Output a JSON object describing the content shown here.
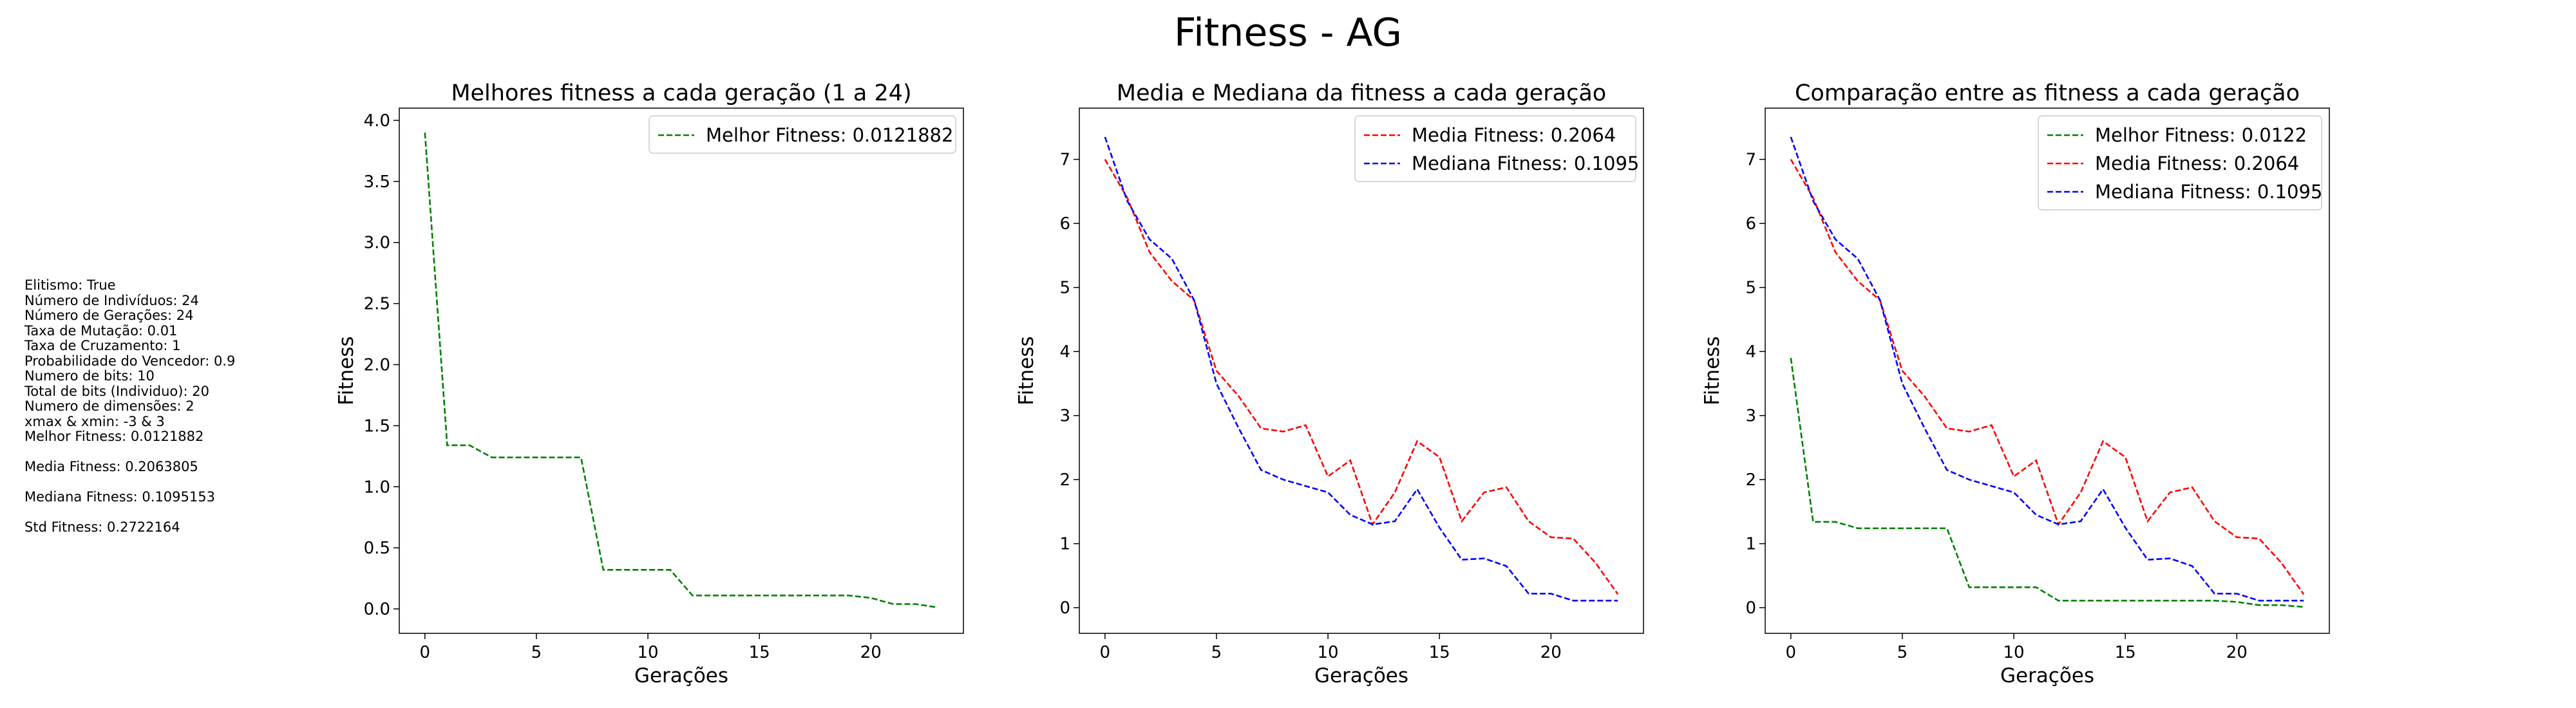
{
  "figure": {
    "title": "Fitness - AG",
    "params": [
      "Elitismo: True",
      "Número de Indivíduos: 24",
      "Número de Gerações: 24",
      "Taxa de Mutação: 0.01",
      "Taxa de Cruzamento: 1",
      "Probabilidade do Vencedor: 0.9",
      "Numero de bits: 10",
      "Total de bits (Individuo): 20",
      "Numero de dimensões: 2",
      "xmax & xmin: -3 & 3",
      "Melhor Fitness: 0.0121882",
      "",
      "Media Fitness: 0.2063805",
      "",
      "Mediana Fitness: 0.1095153",
      "",
      "Std Fitness: 0.2722164"
    ]
  },
  "chart_data": [
    {
      "type": "line",
      "title": "Melhores fitness a cada geração (1 a 24)",
      "xlabel": "Gerações",
      "ylabel": "Fitness",
      "xlim": [
        -1.15,
        24.15
      ],
      "ylim": [
        -0.2,
        4.1
      ],
      "xticks": [
        0,
        5,
        10,
        15,
        20
      ],
      "yticks": [
        "0.0",
        "0.5",
        "1.0",
        "1.5",
        "2.0",
        "2.5",
        "3.0",
        "3.5",
        "4.0"
      ],
      "legend_position": "top-right",
      "x": [
        0,
        1,
        2,
        3,
        4,
        5,
        6,
        7,
        8,
        9,
        10,
        11,
        12,
        13,
        14,
        15,
        16,
        17,
        18,
        19,
        20,
        21,
        22,
        23
      ],
      "series": [
        {
          "name": "Melhor Fitness: 0.0121882",
          "color": "#008000",
          "values": [
            3.9,
            1.34,
            1.34,
            1.24,
            1.24,
            1.24,
            1.24,
            1.24,
            0.32,
            0.32,
            0.32,
            0.32,
            0.11,
            0.11,
            0.11,
            0.11,
            0.11,
            0.11,
            0.11,
            0.11,
            0.09,
            0.04,
            0.04,
            0.012
          ]
        }
      ]
    },
    {
      "type": "line",
      "title": "Media e Mediana da fitness a cada geração",
      "xlabel": "Gerações",
      "ylabel": "Fitness",
      "xlim": [
        -1.15,
        24.15
      ],
      "ylim": [
        -0.4,
        7.8
      ],
      "xticks": [
        0,
        5,
        10,
        15,
        20
      ],
      "yticks": [
        "0",
        "1",
        "2",
        "3",
        "4",
        "5",
        "6",
        "7"
      ],
      "legend_position": "top-right",
      "x": [
        0,
        1,
        2,
        3,
        4,
        5,
        6,
        7,
        8,
        9,
        10,
        11,
        12,
        13,
        14,
        15,
        16,
        17,
        18,
        19,
        20,
        21,
        22,
        23
      ],
      "series": [
        {
          "name": "Media Fitness: 0.2064",
          "color": "#ff0000",
          "values": [
            7.0,
            6.4,
            5.55,
            5.1,
            4.8,
            3.7,
            3.3,
            2.8,
            2.75,
            2.85,
            2.05,
            2.3,
            1.3,
            1.8,
            2.6,
            2.35,
            1.35,
            1.8,
            1.88,
            1.35,
            1.1,
            1.08,
            0.7,
            0.21
          ]
        },
        {
          "name": "Mediana Fitness: 0.1095",
          "color": "#0000ff",
          "values": [
            7.35,
            6.35,
            5.75,
            5.45,
            4.8,
            3.5,
            2.8,
            2.15,
            2.0,
            1.9,
            1.8,
            1.45,
            1.3,
            1.35,
            1.85,
            1.25,
            0.75,
            0.77,
            0.65,
            0.22,
            0.22,
            0.11,
            0.11,
            0.11
          ]
        }
      ]
    },
    {
      "type": "line",
      "title": "Comparação entre as fitness a cada geração",
      "xlabel": "Gerações",
      "ylabel": "Fitness",
      "xlim": [
        -1.15,
        24.15
      ],
      "ylim": [
        -0.4,
        7.8
      ],
      "xticks": [
        0,
        5,
        10,
        15,
        20
      ],
      "yticks": [
        "0",
        "1",
        "2",
        "3",
        "4",
        "5",
        "6",
        "7"
      ],
      "legend_position": "top-right",
      "x": [
        0,
        1,
        2,
        3,
        4,
        5,
        6,
        7,
        8,
        9,
        10,
        11,
        12,
        13,
        14,
        15,
        16,
        17,
        18,
        19,
        20,
        21,
        22,
        23
      ],
      "series": [
        {
          "name": "Melhor Fitness: 0.0122",
          "color": "#008000",
          "values": [
            3.9,
            1.34,
            1.34,
            1.24,
            1.24,
            1.24,
            1.24,
            1.24,
            0.32,
            0.32,
            0.32,
            0.32,
            0.11,
            0.11,
            0.11,
            0.11,
            0.11,
            0.11,
            0.11,
            0.11,
            0.09,
            0.04,
            0.04,
            0.012
          ]
        },
        {
          "name": "Media Fitness: 0.2064",
          "color": "#ff0000",
          "values": [
            7.0,
            6.4,
            5.55,
            5.1,
            4.8,
            3.7,
            3.3,
            2.8,
            2.75,
            2.85,
            2.05,
            2.3,
            1.3,
            1.8,
            2.6,
            2.35,
            1.35,
            1.8,
            1.88,
            1.35,
            1.1,
            1.08,
            0.7,
            0.21
          ]
        },
        {
          "name": "Mediana Fitness: 0.1095",
          "color": "#0000ff",
          "values": [
            7.35,
            6.35,
            5.75,
            5.45,
            4.8,
            3.5,
            2.8,
            2.15,
            2.0,
            1.9,
            1.8,
            1.45,
            1.3,
            1.35,
            1.85,
            1.25,
            0.75,
            0.77,
            0.65,
            0.22,
            0.22,
            0.11,
            0.11,
            0.11
          ]
        }
      ]
    }
  ]
}
